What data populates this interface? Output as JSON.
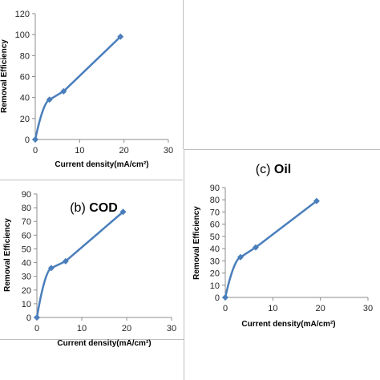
{
  "chart_data": [
    {
      "id": "a",
      "type": "line",
      "title": "",
      "xlabel": "Current density(mA/cm²)",
      "ylabel": "Removal Efficiency",
      "xlim": [
        0,
        30
      ],
      "ylim": [
        0,
        120
      ],
      "xticks": [
        0,
        10,
        20,
        30
      ],
      "yticks": [
        0,
        20,
        40,
        60,
        80,
        100,
        120
      ],
      "grid": false,
      "line_color": "#4a7ebb",
      "x": [
        0,
        3.2,
        6.4,
        19.2
      ],
      "y": [
        0,
        38,
        46,
        98
      ]
    },
    {
      "id": "b",
      "type": "line",
      "title_prefix": "(b) ",
      "title_bold": "COD",
      "xlabel": "Current density(mA/cm²)",
      "ylabel": "Removal Efficiency",
      "xlim": [
        0,
        30
      ],
      "ylim": [
        0,
        90
      ],
      "xticks": [
        0,
        10,
        20,
        30
      ],
      "yticks": [
        0,
        10,
        20,
        30,
        40,
        50,
        60,
        70,
        80,
        90
      ],
      "grid": false,
      "line_color": "#4a7ebb",
      "x": [
        0,
        3.2,
        6.4,
        19.2
      ],
      "y": [
        0,
        36,
        41,
        77
      ]
    },
    {
      "id": "c",
      "type": "line",
      "title_prefix": "(c) ",
      "title_bold": "Oil",
      "xlabel": "Current density(mA/cm²)",
      "ylabel": "Removal Efficiency",
      "xlim": [
        0,
        30
      ],
      "ylim": [
        0,
        90
      ],
      "xticks": [
        0,
        10,
        20,
        30
      ],
      "yticks": [
        0,
        10,
        20,
        30,
        40,
        50,
        60,
        70,
        80,
        90
      ],
      "grid": false,
      "line_color": "#4a7ebb",
      "x": [
        0,
        3.2,
        6.4,
        19.2
      ],
      "y": [
        0,
        33,
        41,
        79
      ]
    }
  ]
}
